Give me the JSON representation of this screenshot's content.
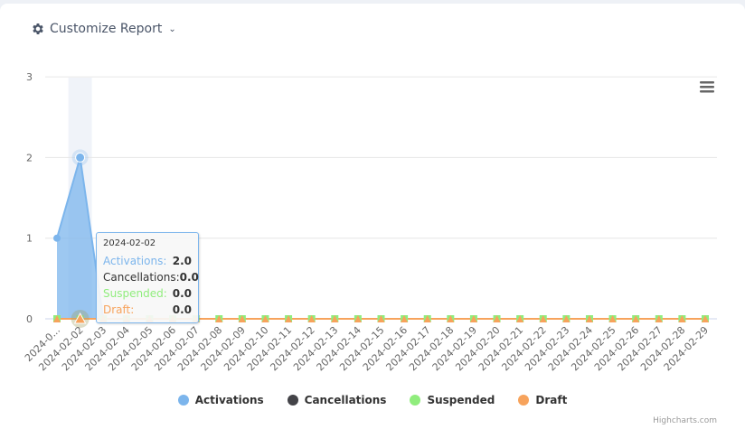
{
  "header": {
    "customize_label": "Customize Report",
    "gear_icon": "gear-icon",
    "chevron_icon": "chevron-down-icon"
  },
  "menu": {
    "icon": "hamburger-menu-icon"
  },
  "tooltip": {
    "date": "2024-02-02",
    "rows": [
      {
        "label": "Activations:",
        "value": "2.0",
        "color": "#7cb5ec"
      },
      {
        "label": "Cancellations:",
        "value": "0.0",
        "color": "#333333"
      },
      {
        "label": "Suspended:",
        "value": "0.0",
        "color": "#90ed7d"
      },
      {
        "label": "Draft:",
        "value": "0.0",
        "color": "#f7a35c"
      }
    ]
  },
  "legend": [
    {
      "label": "Activations",
      "color": "#7cb5ec"
    },
    {
      "label": "Cancellations",
      "color": "#434348"
    },
    {
      "label": "Suspended",
      "color": "#90ed7d"
    },
    {
      "label": "Draft",
      "color": "#f7a35c"
    }
  ],
  "credits": "Highcharts.com",
  "chart_data": {
    "type": "area",
    "title": "",
    "xlabel": "",
    "ylabel": "",
    "ylim": [
      0,
      3
    ],
    "yticks": [
      0,
      1,
      2,
      3
    ],
    "grid": true,
    "legend_position": "bottom",
    "categories": [
      "2024-02-01",
      "2024-02-02",
      "2024-02-03",
      "2024-02-04",
      "2024-02-05",
      "2024-02-06",
      "2024-02-07",
      "2024-02-08",
      "2024-02-09",
      "2024-02-10",
      "2024-02-11",
      "2024-02-12",
      "2024-02-13",
      "2024-02-14",
      "2024-02-15",
      "2024-02-16",
      "2024-02-17",
      "2024-02-18",
      "2024-02-19",
      "2024-02-20",
      "2024-02-21",
      "2024-02-22",
      "2024-02-23",
      "2024-02-24",
      "2024-02-25",
      "2024-02-26",
      "2024-02-27",
      "2024-02-28",
      "2024-02-29"
    ],
    "tick_labels": [
      "2024-0...",
      "2024-02-02",
      "2024-02-03",
      "2024-02-04",
      "2024-02-05",
      "2024-02-06",
      "2024-02-07",
      "2024-02-08",
      "2024-02-09",
      "2024-02-10",
      "2024-02-11",
      "2024-02-12",
      "2024-02-13",
      "2024-02-14",
      "2024-02-15",
      "2024-02-16",
      "2024-02-17",
      "2024-02-18",
      "2024-02-19",
      "2024-02-20",
      "2024-02-21",
      "2024-02-22",
      "2024-02-23",
      "2024-02-24",
      "2024-02-25",
      "2024-02-26",
      "2024-02-27",
      "2024-02-28",
      "2024-02-29"
    ],
    "series": [
      {
        "name": "Activations",
        "color": "#7cb5ec",
        "values": [
          1,
          2,
          0,
          0,
          0,
          0,
          0,
          0,
          0,
          0,
          0,
          0,
          0,
          0,
          0,
          0,
          0,
          0,
          0,
          0,
          0,
          0,
          0,
          0,
          0,
          0,
          0,
          0,
          0
        ]
      },
      {
        "name": "Cancellations",
        "color": "#434348",
        "values": [
          0,
          0,
          0,
          0,
          0,
          0,
          0,
          0,
          0,
          0,
          0,
          0,
          0,
          0,
          0,
          0,
          0,
          0,
          0,
          0,
          0,
          0,
          0,
          0,
          0,
          0,
          0,
          0,
          0
        ]
      },
      {
        "name": "Suspended",
        "color": "#90ed7d",
        "values": [
          0,
          0,
          0,
          0,
          0,
          0,
          0,
          0,
          0,
          0,
          0,
          0,
          0,
          0,
          0,
          0,
          0,
          0,
          0,
          0,
          0,
          0,
          0,
          0,
          0,
          0,
          0,
          0,
          0
        ]
      },
      {
        "name": "Draft",
        "color": "#f7a35c",
        "values": [
          0,
          0,
          0,
          0,
          0,
          0,
          0,
          0,
          0,
          0,
          0,
          0,
          0,
          0,
          0,
          0,
          0,
          0,
          0,
          0,
          0,
          0,
          0,
          0,
          0,
          0,
          0,
          0,
          0
        ]
      }
    ],
    "hovered_index": 1
  }
}
